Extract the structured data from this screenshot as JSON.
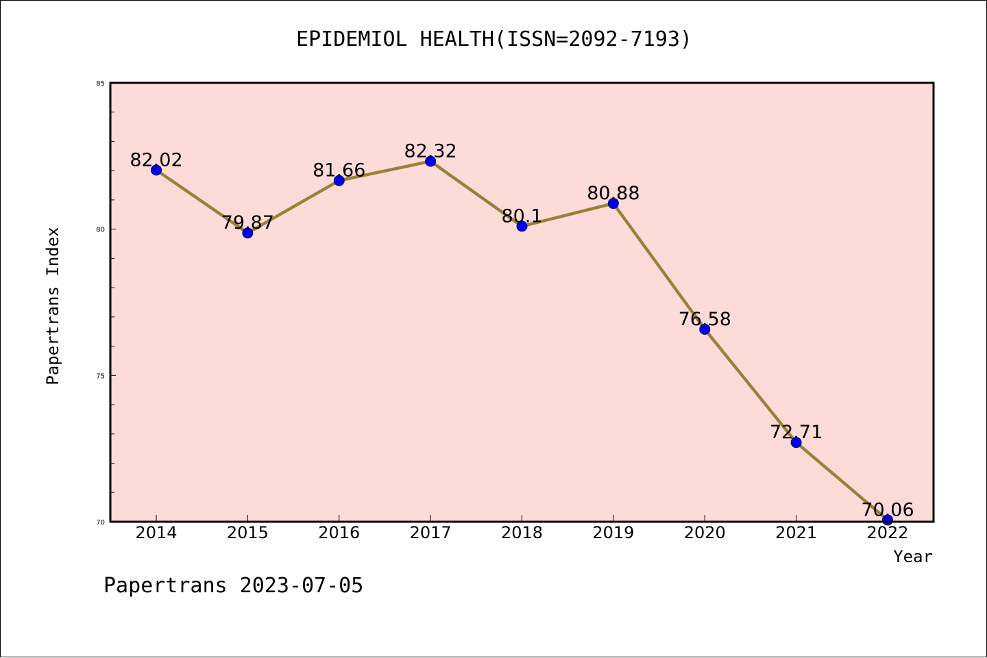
{
  "chart_data": {
    "type": "line",
    "title": "EPIDEMIOL HEALTH(ISSN=2092-7193)",
    "xlabel": "Year",
    "ylabel": "Papertrans Index",
    "x": [
      "2014",
      "2015",
      "2016",
      "2017",
      "2018",
      "2019",
      "2020",
      "2021",
      "2022"
    ],
    "series": [
      {
        "values": [
          82.02,
          79.87,
          81.66,
          82.32,
          80.1,
          80.88,
          76.58,
          72.71,
          70.06
        ],
        "labels": [
          "82.02",
          "79.87",
          "81.66",
          "82.32",
          "80.1",
          "80.88",
          "76.58",
          "72.71",
          "70.06"
        ]
      }
    ],
    "ylim": [
      70,
      85
    ],
    "y_ticks": [
      "70",
      "75",
      "80",
      "85"
    ],
    "grid": false,
    "colors": {
      "plot_background": "#fddbd8",
      "line": "#998237",
      "marker": "#0000ee",
      "marker_edge": "#000066"
    }
  },
  "footer": {
    "text": "Papertrans 2023-07-05"
  }
}
